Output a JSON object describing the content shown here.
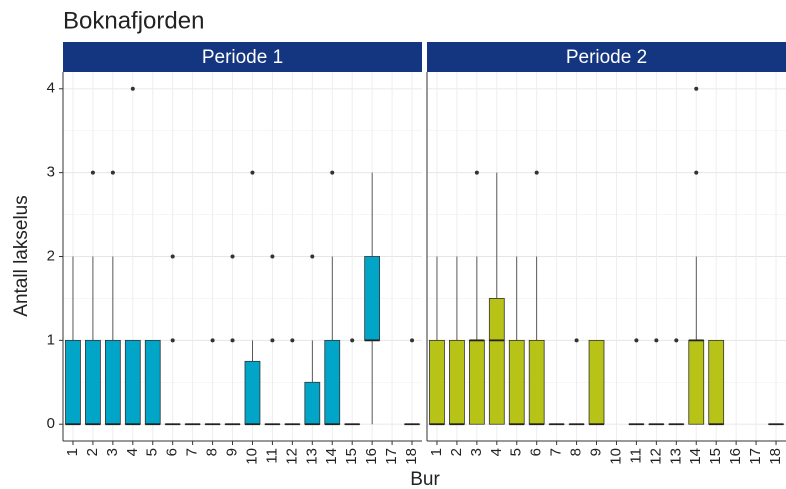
{
  "chart_data": {
    "type": "box",
    "title": "Boknafjorden",
    "xlabel": "Bur",
    "ylabel": "Antall lakselus",
    "ylim": [
      -0.2,
      4.2
    ],
    "yticks": [
      0,
      1,
      2,
      3,
      4
    ],
    "grid": true,
    "strip_color": "#14357f",
    "facets": [
      {
        "title": "Periode 1",
        "color": "#00a5c8",
        "categories": [
          "1",
          "2",
          "3",
          "4",
          "5",
          "6",
          "7",
          "8",
          "9",
          "10",
          "11",
          "12",
          "13",
          "14",
          "15",
          "16",
          "17",
          "18"
        ],
        "boxes": [
          {
            "min": 0,
            "q1": 0,
            "median": 0,
            "q3": 1,
            "max": 2,
            "outliers": []
          },
          {
            "min": 0,
            "q1": 0,
            "median": 0,
            "q3": 1,
            "max": 2,
            "outliers": [
              3
            ]
          },
          {
            "min": 0,
            "q1": 0,
            "median": 0,
            "q3": 1,
            "max": 2,
            "outliers": [
              3
            ]
          },
          {
            "min": 0,
            "q1": 0,
            "median": 0,
            "q3": 1,
            "max": 1,
            "outliers": [
              4
            ]
          },
          {
            "min": 0,
            "q1": 0,
            "median": 0,
            "q3": 1,
            "max": 1,
            "outliers": []
          },
          {
            "min": 0,
            "q1": 0,
            "median": 0,
            "q3": 0,
            "max": 0,
            "outliers": [
              1,
              2
            ]
          },
          {
            "min": 0,
            "q1": 0,
            "median": 0,
            "q3": 0,
            "max": 0,
            "outliers": []
          },
          {
            "min": 0,
            "q1": 0,
            "median": 0,
            "q3": 0,
            "max": 0,
            "outliers": [
              1
            ]
          },
          {
            "min": 0,
            "q1": 0,
            "median": 0,
            "q3": 0,
            "max": 0,
            "outliers": [
              1,
              2
            ]
          },
          {
            "min": 0,
            "q1": 0,
            "median": 0,
            "q3": 0.75,
            "max": 1,
            "outliers": [
              3
            ]
          },
          {
            "min": 0,
            "q1": 0,
            "median": 0,
            "q3": 0,
            "max": 0,
            "outliers": [
              1,
              2
            ]
          },
          {
            "min": 0,
            "q1": 0,
            "median": 0,
            "q3": 0,
            "max": 0,
            "outliers": [
              1
            ]
          },
          {
            "min": 0,
            "q1": 0,
            "median": 0,
            "q3": 0.5,
            "max": 1,
            "outliers": [
              2
            ]
          },
          {
            "min": 0,
            "q1": 0,
            "median": 0,
            "q3": 1,
            "max": 2,
            "outliers": [
              3
            ]
          },
          {
            "min": 0,
            "q1": 0,
            "median": 0,
            "q3": 0,
            "max": 0,
            "outliers": [
              1
            ]
          },
          {
            "min": 0,
            "q1": 1,
            "median": 1,
            "q3": 2,
            "max": 3,
            "outliers": []
          },
          null,
          {
            "min": 0,
            "q1": 0,
            "median": 0,
            "q3": 0,
            "max": 0,
            "outliers": [
              1
            ]
          }
        ]
      },
      {
        "title": "Periode 2",
        "color": "#b7c316",
        "categories": [
          "1",
          "2",
          "3",
          "4",
          "5",
          "6",
          "7",
          "8",
          "9",
          "10",
          "11",
          "12",
          "13",
          "14",
          "15",
          "16",
          "17",
          "18"
        ],
        "boxes": [
          {
            "min": 0,
            "q1": 0,
            "median": 0,
            "q3": 1,
            "max": 2,
            "outliers": []
          },
          {
            "min": 0,
            "q1": 0,
            "median": 0,
            "q3": 1,
            "max": 2,
            "outliers": []
          },
          {
            "min": 0,
            "q1": 0,
            "median": 1,
            "q3": 1,
            "max": 2,
            "outliers": [
              3
            ]
          },
          {
            "min": 0,
            "q1": 0,
            "median": 1,
            "q3": 1.5,
            "max": 3,
            "outliers": []
          },
          {
            "min": 0,
            "q1": 0,
            "median": 0,
            "q3": 1,
            "max": 2,
            "outliers": []
          },
          {
            "min": 0,
            "q1": 0,
            "median": 0,
            "q3": 1,
            "max": 2,
            "outliers": [
              3
            ]
          },
          {
            "min": 0,
            "q1": 0,
            "median": 0,
            "q3": 0,
            "max": 0,
            "outliers": []
          },
          {
            "min": 0,
            "q1": 0,
            "median": 0,
            "q3": 0,
            "max": 0,
            "outliers": [
              1
            ]
          },
          {
            "min": 0,
            "q1": 0,
            "median": 0,
            "q3": 1,
            "max": 1,
            "outliers": []
          },
          null,
          {
            "min": 0,
            "q1": 0,
            "median": 0,
            "q3": 0,
            "max": 0,
            "outliers": [
              1
            ]
          },
          {
            "min": 0,
            "q1": 0,
            "median": 0,
            "q3": 0,
            "max": 0,
            "outliers": [
              1
            ]
          },
          {
            "min": 0,
            "q1": 0,
            "median": 0,
            "q3": 0,
            "max": 0,
            "outliers": [
              1
            ]
          },
          {
            "min": 0,
            "q1": 0,
            "median": 1,
            "q3": 1,
            "max": 2,
            "outliers": [
              3,
              4
            ]
          },
          {
            "min": 0,
            "q1": 0,
            "median": 0,
            "q3": 1,
            "max": 1,
            "outliers": []
          },
          null,
          null,
          {
            "min": 0,
            "q1": 0,
            "median": 0,
            "q3": 0,
            "max": 0,
            "outliers": []
          }
        ]
      }
    ]
  }
}
